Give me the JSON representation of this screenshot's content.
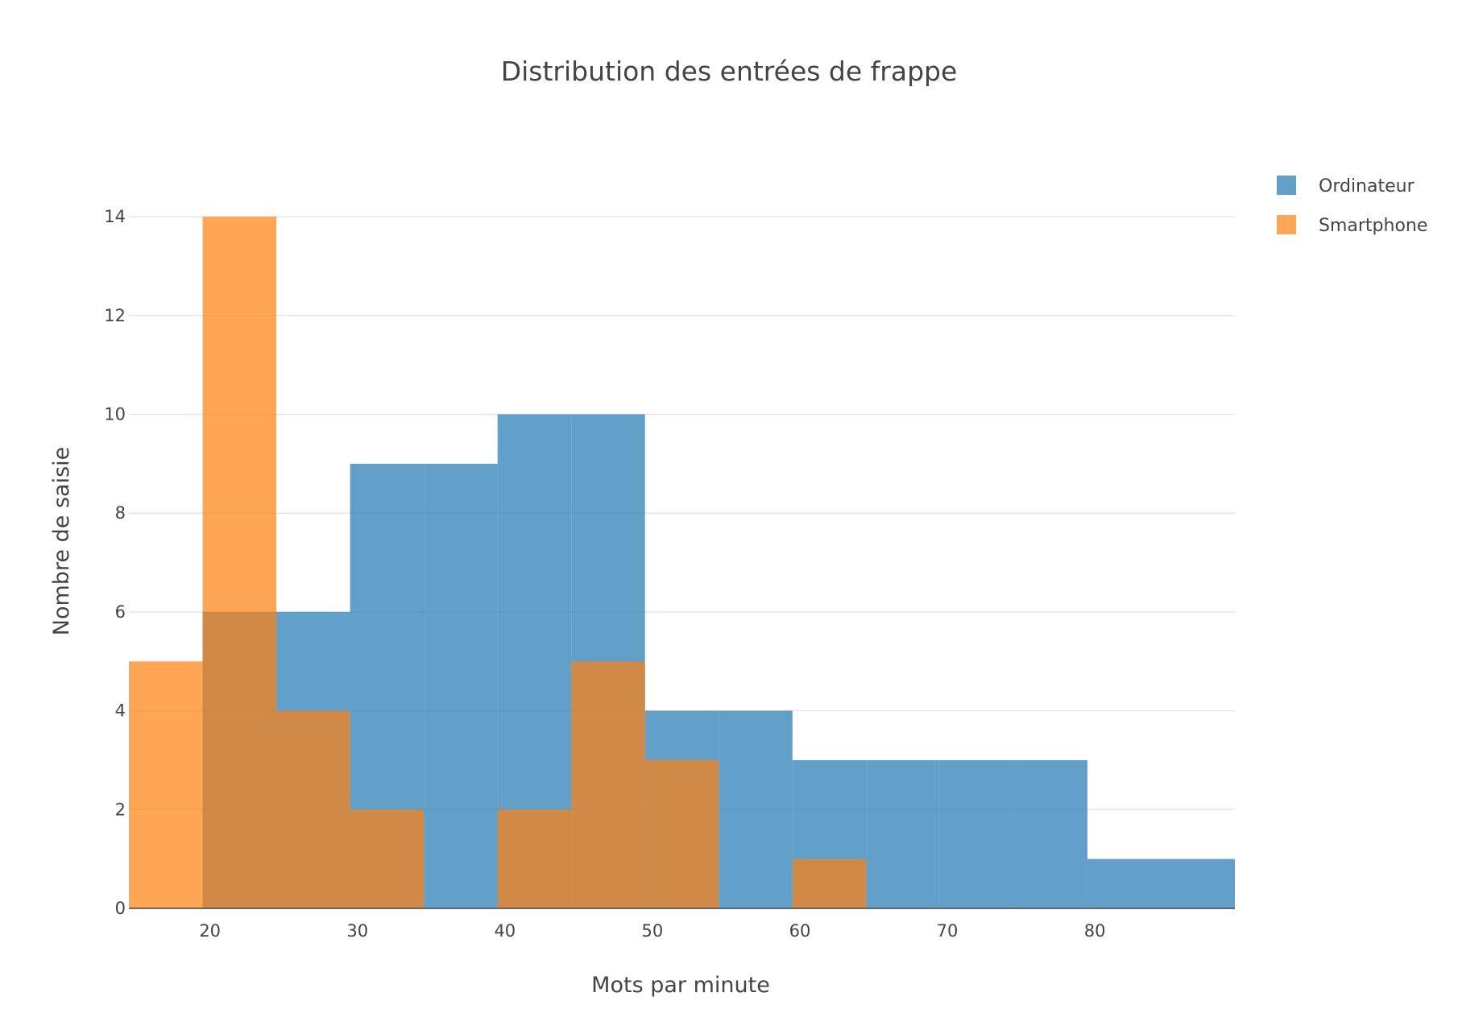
{
  "chart_data": {
    "type": "bar",
    "subtype": "histogram-overlay",
    "title": "Distribution des entrées de frappe",
    "xlabel": "Mots par minute",
    "ylabel": "Nombre de saisie",
    "xlim": [
      14.5,
      89.5
    ],
    "ylim": [
      0,
      14.8
    ],
    "xticks": [
      20,
      30,
      40,
      50,
      60,
      70,
      80
    ],
    "yticks": [
      0,
      2,
      4,
      6,
      8,
      10,
      12,
      14
    ],
    "grid": true,
    "legend_position": "top-right",
    "bin_size": 5,
    "series": [
      {
        "name": "Ordinateur",
        "color": "#1f77b4",
        "opacity": 0.7,
        "bins": [
          {
            "start": 19.5,
            "end": 24.5,
            "count": 6
          },
          {
            "start": 24.5,
            "end": 29.5,
            "count": 6
          },
          {
            "start": 29.5,
            "end": 34.5,
            "count": 9
          },
          {
            "start": 34.5,
            "end": 39.5,
            "count": 9
          },
          {
            "start": 39.5,
            "end": 44.5,
            "count": 10
          },
          {
            "start": 44.5,
            "end": 49.5,
            "count": 10
          },
          {
            "start": 49.5,
            "end": 54.5,
            "count": 4
          },
          {
            "start": 54.5,
            "end": 59.5,
            "count": 4
          },
          {
            "start": 59.5,
            "end": 64.5,
            "count": 3
          },
          {
            "start": 64.5,
            "end": 69.5,
            "count": 3
          },
          {
            "start": 69.5,
            "end": 74.5,
            "count": 3
          },
          {
            "start": 74.5,
            "end": 79.5,
            "count": 3
          },
          {
            "start": 79.5,
            "end": 84.5,
            "count": 1
          },
          {
            "start": 84.5,
            "end": 89.5,
            "count": 1
          }
        ]
      },
      {
        "name": "Smartphone",
        "color": "#ff7f0e",
        "opacity": 0.7,
        "bins": [
          {
            "start": 14.5,
            "end": 19.5,
            "count": 5
          },
          {
            "start": 19.5,
            "end": 24.5,
            "count": 14
          },
          {
            "start": 24.5,
            "end": 29.5,
            "count": 4
          },
          {
            "start": 29.5,
            "end": 34.5,
            "count": 2
          },
          {
            "start": 39.5,
            "end": 44.5,
            "count": 2
          },
          {
            "start": 44.5,
            "end": 49.5,
            "count": 5
          },
          {
            "start": 49.5,
            "end": 54.5,
            "count": 3
          },
          {
            "start": 59.5,
            "end": 64.5,
            "count": 1
          }
        ]
      }
    ]
  }
}
